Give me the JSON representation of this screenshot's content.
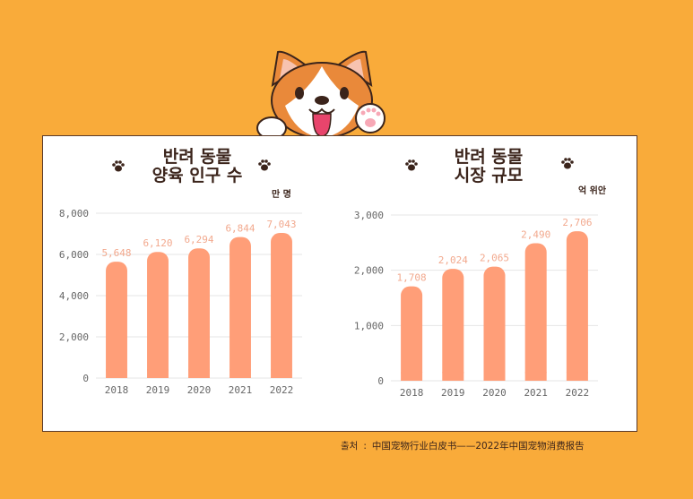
{
  "colors": {
    "background": "#F9AB3A",
    "bar": "#FF9E78",
    "label": "#F2A98E",
    "title": "#3b241b",
    "axis": "#666666"
  },
  "icons": [
    "dog-mascot-icon",
    "paw-icon"
  ],
  "left": {
    "title_line1": "반려 동물",
    "title_line2": "양육 인구 수",
    "unit": "만 명"
  },
  "right": {
    "title_line1": "반려 동물",
    "title_line2": "시장 규모",
    "unit": "억 위안"
  },
  "source": {
    "label": "출처",
    "text": "中国宠物行业白皮书——2022年中国宠物消费报告"
  },
  "chart_data": [
    {
      "type": "bar",
      "title": "반려 동물 양육 인구 수",
      "unit": "만 명",
      "categories": [
        "2018",
        "2019",
        "2020",
        "2021",
        "2022"
      ],
      "values": [
        5648,
        6120,
        6294,
        6844,
        7043
      ],
      "value_labels": [
        "5,648",
        "6,120",
        "6,294",
        "6,844",
        "7,043"
      ],
      "ylim": [
        0,
        8000
      ],
      "yticks": [
        0,
        2000,
        4000,
        6000,
        8000
      ],
      "ytick_labels": [
        "0",
        "2,000",
        "4,000",
        "6,000",
        "8,000"
      ],
      "grid": true
    },
    {
      "type": "bar",
      "title": "반려 동물 시장 규모",
      "unit": "억 위안",
      "categories": [
        "2018",
        "2019",
        "2020",
        "2021",
        "2022"
      ],
      "values": [
        1708,
        2024,
        2065,
        2490,
        2706
      ],
      "value_labels": [
        "1,708",
        "2,024",
        "2,065",
        "2,490",
        "2,706"
      ],
      "ylim": [
        0,
        3000
      ],
      "yticks": [
        0,
        1000,
        2000,
        3000
      ],
      "ytick_labels": [
        "0",
        "1,000",
        "2,000",
        "3,000"
      ],
      "grid": true
    }
  ]
}
